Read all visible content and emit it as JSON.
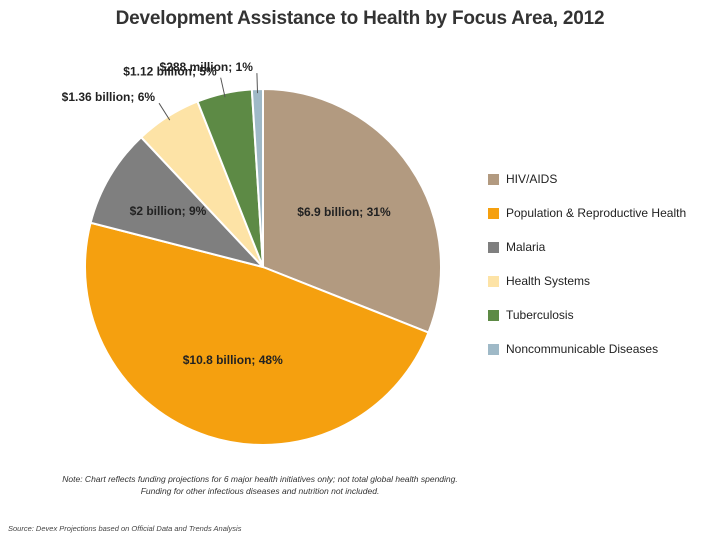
{
  "chart_data": {
    "type": "pie",
    "title": "Development Assistance to Health by Focus Area, 2012",
    "slices": [
      {
        "name": "HIV/AIDS",
        "percent": 31,
        "label": "$6.9 billion; 31%",
        "color": "#b29a80"
      },
      {
        "name": "Population & Reproductive Health",
        "percent": 48,
        "label": "$10.8 billion; 48%",
        "color": "#f5a00f"
      },
      {
        "name": "Malaria",
        "percent": 9,
        "label": "$2 billion; 9%",
        "color": "#7f7f7f"
      },
      {
        "name": "Health Systems",
        "percent": 6,
        "label": "$1.36 billion; 6%",
        "color": "#fde3a6"
      },
      {
        "name": "Tuberculosis",
        "percent": 5,
        "label": "$1.12 billion; 5%",
        "color": "#5d8a45"
      },
      {
        "name": "Noncommunicable Diseases",
        "percent": 1,
        "label": "$288 million; 1%",
        "color": "#9fb9c7"
      }
    ],
    "legend_position": "right"
  },
  "note": "Note: Chart reflects funding projections for 6 major health initiatives only; not total global health spending. Funding for other infectious diseases and nutrition not included.",
  "source": "Source: Devex Projections based on Official Data and Trends Analysis"
}
